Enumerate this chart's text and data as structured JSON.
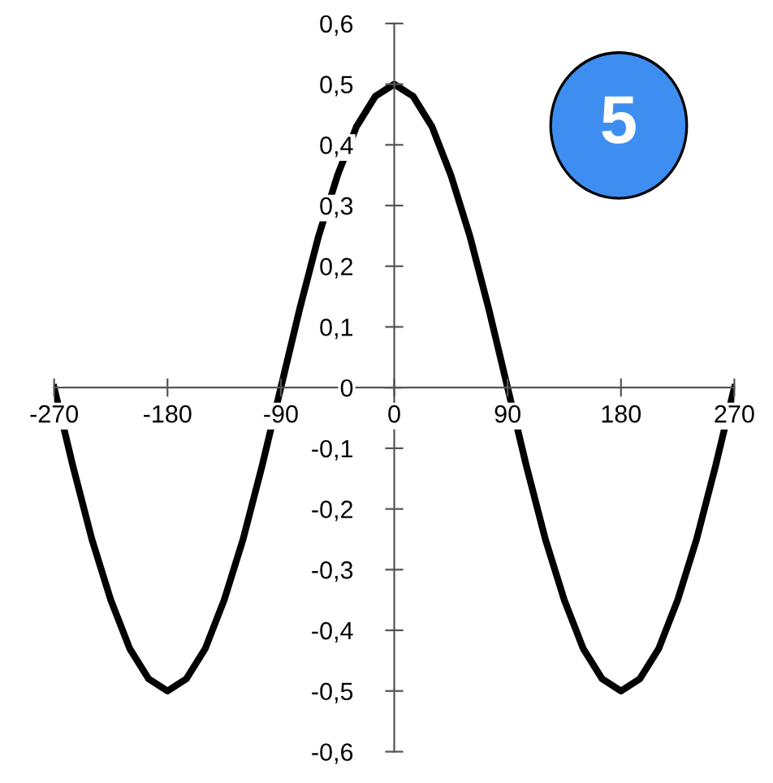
{
  "chart_data": {
    "type": "line",
    "x": [
      -270,
      -255,
      -240,
      -225,
      -210,
      -195,
      -180,
      -165,
      -150,
      -135,
      -120,
      -105,
      -90,
      -75,
      -60,
      -45,
      -30,
      -15,
      0,
      15,
      30,
      45,
      60,
      75,
      90,
      105,
      120,
      135,
      150,
      165,
      180,
      195,
      210,
      225,
      240,
      255,
      270
    ],
    "series": [
      {
        "color": "#000000",
        "values": [
          0,
          -0.13,
          -0.25,
          -0.35,
          -0.43,
          -0.48,
          -0.5,
          -0.48,
          -0.43,
          -0.35,
          -0.25,
          -0.13,
          0,
          0.13,
          0.25,
          0.35,
          0.43,
          0.48,
          0.5,
          0.48,
          0.43,
          0.35,
          0.25,
          0.13,
          0,
          -0.13,
          -0.25,
          -0.35,
          -0.43,
          -0.48,
          -0.5,
          -0.48,
          -0.43,
          -0.35,
          -0.25,
          -0.13,
          0
        ]
      }
    ],
    "xlim": [
      -270,
      270
    ],
    "xticks": [
      -270,
      -180,
      -90,
      0,
      90,
      180,
      270
    ],
    "ylim": [
      -0.6,
      0.6
    ],
    "yticks": [
      {
        "value": -0.6,
        "label": "-0,6"
      },
      {
        "value": -0.5,
        "label": "-0,5"
      },
      {
        "value": -0.4,
        "label": "-0,4"
      },
      {
        "value": -0.3,
        "label": "-0,3"
      },
      {
        "value": -0.2,
        "label": "-0,2"
      },
      {
        "value": -0.1,
        "label": "-0,1"
      },
      0,
      {
        "value": 0.1,
        "label": "0,1"
      },
      {
        "value": 0.2,
        "label": "0,2"
      },
      {
        "value": 0.3,
        "label": "0,3"
      },
      {
        "value": 0.4,
        "label": "0,4"
      },
      {
        "value": 0.5,
        "label": "0,5"
      },
      {
        "value": 0.6,
        "label": "0,6"
      }
    ],
    "grid": false,
    "legend": false,
    "marker": "none",
    "line_style": "solid",
    "annotations": [
      "5"
    ]
  }
}
